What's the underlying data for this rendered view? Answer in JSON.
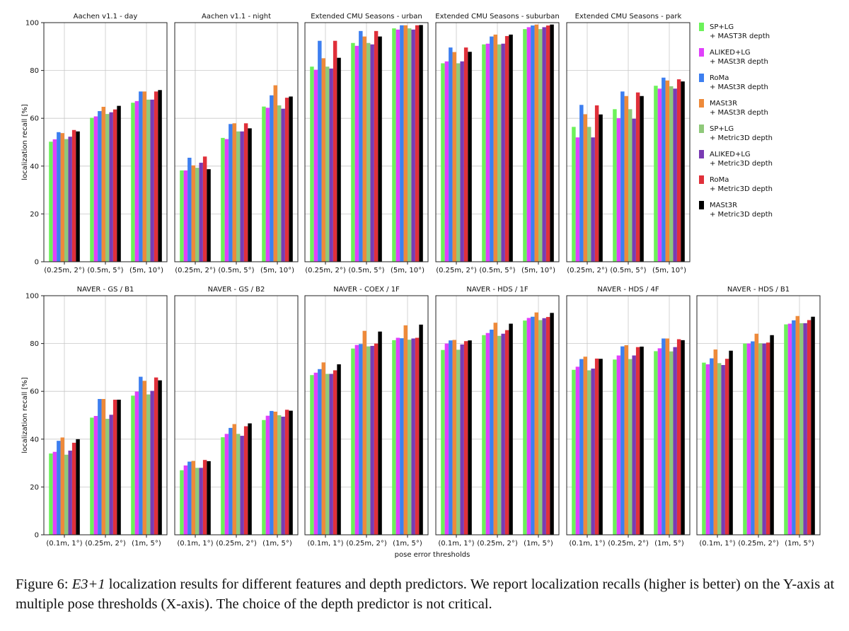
{
  "figure": {
    "ylabel": "localization recall [%]",
    "xlabel": "pose error thresholds",
    "yticks": [
      0,
      20,
      40,
      60,
      80,
      100
    ]
  },
  "legend": [
    {
      "line1": "SP+LG",
      "line2": "+ MAST3R depth",
      "color": "#6cf25a"
    },
    {
      "line1": "ALIKED+LG",
      "line2": "+ MASt3R depth",
      "color": "#e040fb"
    },
    {
      "line1": "RoMa",
      "line2": "+ MASt3R depth",
      "color": "#3d7ff0"
    },
    {
      "line1": "MASt3R",
      "line2": "+ MASt3R depth",
      "color": "#ee8a3a"
    },
    {
      "line1": "SP+LG",
      "line2": "+ Metric3D depth",
      "color": "#8fc97a"
    },
    {
      "line1": "ALIKED+LG",
      "line2": "+ Metric3D depth",
      "color": "#7a3bb4"
    },
    {
      "line1": "RoMa",
      "line2": "+ Metric3D depth",
      "color": "#e0303a"
    },
    {
      "line1": "MASt3R",
      "line2": "+ Metric3D depth",
      "color": "#000000"
    }
  ],
  "caption": {
    "prefix": "Figure 6: ",
    "emph": "E3+1",
    "text": " localization results for different features and depth predictors. We report localization recalls (higher is better) on the Y-axis at multiple pose thresholds (X-axis). The choice of the depth predictor is not critical."
  },
  "chart_data": [
    {
      "type": "bar",
      "title": "Aachen v1.1 - day",
      "categories": [
        "(0.25m, 2°)",
        "(0.5m, 5°)",
        "(5m, 10°)"
      ],
      "ylim": [
        0,
        100
      ],
      "values": [
        [
          50.2,
          51.2,
          54.2,
          53.8,
          51.3,
          52.3,
          55.1,
          54.5
        ],
        [
          60.2,
          60.8,
          63.0,
          64.8,
          61.8,
          62.5,
          63.7,
          65.2
        ],
        [
          66.5,
          67.2,
          71.2,
          71.2,
          67.8,
          67.8,
          71.2,
          71.8
        ]
      ]
    },
    {
      "type": "bar",
      "title": "Aachen v1.1 - night",
      "categories": [
        "(0.25m, 2°)",
        "(0.5m, 5°)",
        "(5m, 10°)"
      ],
      "ylim": [
        0,
        100
      ],
      "values": [
        [
          38.2,
          38.2,
          43.5,
          40.3,
          39.3,
          41.4,
          44.0,
          38.7
        ],
        [
          51.8,
          51.3,
          57.6,
          57.9,
          54.5,
          54.5,
          57.9,
          55.8
        ],
        [
          64.9,
          64.4,
          69.6,
          73.8,
          65.4,
          64.0,
          68.6,
          69.1
        ]
      ]
    },
    {
      "type": "bar",
      "title": "Extended CMU Seasons - urban",
      "categories": [
        "(0.25m, 2°)",
        "(0.5m, 5°)",
        "(5m, 10°)"
      ],
      "ylim": [
        0,
        100
      ],
      "values": [
        [
          81.6,
          80.3,
          92.4,
          85.1,
          81.6,
          80.8,
          92.4,
          85.3
        ],
        [
          91.5,
          90.3,
          96.5,
          94.2,
          91.5,
          90.9,
          96.5,
          94.2
        ],
        [
          97.6,
          97.1,
          98.9,
          98.9,
          97.6,
          97.1,
          98.9,
          99.0
        ]
      ]
    },
    {
      "type": "bar",
      "title": "Extended CMU Seasons - suburban",
      "categories": [
        "(0.25m, 2°)",
        "(0.5m, 5°)",
        "(5m, 10°)"
      ],
      "ylim": [
        0,
        100
      ],
      "values": [
        [
          83.0,
          83.8,
          89.6,
          87.7,
          83.0,
          83.8,
          89.6,
          87.8
        ],
        [
          90.9,
          91.2,
          94.2,
          95.0,
          90.9,
          91.2,
          94.4,
          95.0
        ],
        [
          97.3,
          98.1,
          98.8,
          99.2,
          97.3,
          98.1,
          98.8,
          99.2
        ]
      ]
    },
    {
      "type": "bar",
      "title": "Extended CMU Seasons - park",
      "categories": [
        "(0.25m, 2°)",
        "(0.5m, 5°)",
        "(5m, 10°)"
      ],
      "ylim": [
        0,
        100
      ],
      "values": [
        [
          56.4,
          52.0,
          65.6,
          61.7,
          56.4,
          52.0,
          65.4,
          61.6
        ],
        [
          63.8,
          60.0,
          71.2,
          69.3,
          63.8,
          59.8,
          70.8,
          69.3
        ],
        [
          73.6,
          72.4,
          77.0,
          75.8,
          73.4,
          72.4,
          76.3,
          75.4
        ]
      ]
    },
    {
      "type": "bar",
      "title": "NAVER - GS / B1",
      "categories": [
        "(0.1m, 1°)",
        "(0.25m, 2°)",
        "(1m, 5°)"
      ],
      "ylim": [
        0,
        100
      ],
      "values": [
        [
          34.0,
          34.7,
          39.3,
          40.7,
          33.5,
          35.2,
          38.5,
          40.0
        ],
        [
          49.0,
          49.7,
          56.8,
          56.8,
          48.5,
          50.2,
          56.5,
          56.5
        ],
        [
          58.2,
          59.9,
          66.1,
          64.4,
          58.7,
          60.2,
          65.8,
          64.6
        ]
      ]
    },
    {
      "type": "bar",
      "title": "NAVER - GS / B2",
      "categories": [
        "(0.1m, 1°)",
        "(0.25m, 2°)",
        "(1m, 5°)"
      ],
      "ylim": [
        0,
        100
      ],
      "values": [
        [
          27.0,
          29.0,
          30.6,
          30.9,
          28.0,
          28.0,
          31.3,
          30.8
        ],
        [
          40.8,
          42.2,
          44.7,
          46.3,
          42.2,
          41.4,
          45.4,
          46.6
        ],
        [
          48.0,
          49.8,
          51.8,
          51.5,
          50.0,
          49.4,
          52.3,
          51.9
        ]
      ]
    },
    {
      "type": "bar",
      "title": "NAVER - COEX / 1F",
      "categories": [
        "(0.1m, 1°)",
        "(0.25m, 2°)",
        "(1m, 5°)"
      ],
      "ylim": [
        0,
        100
      ],
      "values": [
        [
          66.8,
          67.8,
          69.3,
          72.1,
          67.3,
          67.3,
          68.8,
          71.3
        ],
        [
          77.9,
          79.4,
          79.8,
          85.3,
          78.8,
          79.0,
          80.0,
          85.0
        ],
        [
          81.4,
          82.4,
          82.2,
          87.6,
          81.6,
          82.1,
          82.4,
          87.9
        ]
      ]
    },
    {
      "type": "bar",
      "title": "NAVER - HDS / 1F",
      "categories": [
        "(0.1m, 1°)",
        "(0.25m, 2°)",
        "(1m, 5°)"
      ],
      "ylim": [
        0,
        100
      ],
      "values": [
        [
          77.3,
          80.0,
          81.3,
          81.5,
          77.4,
          79.6,
          81.0,
          81.3
        ],
        [
          83.5,
          84.4,
          85.8,
          88.7,
          83.2,
          84.1,
          85.6,
          88.3
        ],
        [
          89.6,
          90.7,
          91.2,
          93.0,
          89.8,
          90.6,
          91.1,
          92.8
        ]
      ]
    },
    {
      "type": "bar",
      "title": "NAVER - HDS / 4F",
      "categories": [
        "(0.1m, 1°)",
        "(0.25m, 2°)",
        "(1m, 5°)"
      ],
      "ylim": [
        0,
        100
      ],
      "values": [
        [
          69.0,
          70.3,
          73.5,
          74.5,
          68.8,
          69.5,
          73.7,
          73.6
        ],
        [
          73.3,
          75.0,
          78.8,
          79.3,
          73.5,
          75.0,
          78.5,
          78.7
        ],
        [
          76.8,
          78.0,
          82.1,
          82.1,
          76.7,
          78.5,
          81.8,
          81.4
        ]
      ]
    },
    {
      "type": "bar",
      "title": "NAVER - HDS / B1",
      "categories": [
        "(0.1m, 1°)",
        "(0.25m, 2°)",
        "(1m, 5°)"
      ],
      "ylim": [
        0,
        100
      ],
      "values": [
        [
          72.0,
          71.3,
          73.8,
          77.5,
          71.8,
          71.0,
          73.6,
          77.0
        ],
        [
          80.0,
          80.0,
          80.9,
          84.1,
          80.1,
          80.0,
          80.4,
          83.5
        ],
        [
          88.0,
          88.3,
          89.7,
          91.5,
          88.5,
          88.5,
          89.8,
          91.2
        ]
      ]
    }
  ]
}
